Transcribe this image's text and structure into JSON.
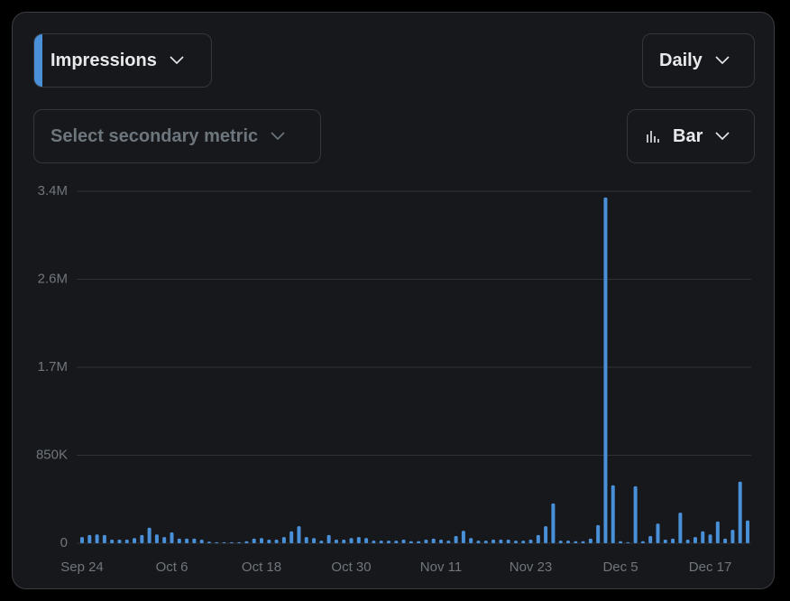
{
  "controls": {
    "primary_metric": "Impressions",
    "interval": "Daily",
    "secondary_metric": "Select secondary metric",
    "chart_style": "Bar"
  },
  "chart_data": {
    "type": "bar",
    "color": "#4a90d9",
    "grid": true,
    "categories": [
      "Sep 24",
      null,
      null,
      null,
      null,
      null,
      null,
      null,
      null,
      null,
      null,
      null,
      "Oct 6",
      null,
      null,
      null,
      null,
      null,
      null,
      null,
      null,
      null,
      null,
      null,
      "Oct 18",
      null,
      null,
      null,
      null,
      null,
      null,
      null,
      null,
      null,
      null,
      null,
      "Oct 30",
      null,
      null,
      null,
      null,
      null,
      null,
      null,
      null,
      null,
      null,
      null,
      "Nov 11",
      null,
      null,
      null,
      null,
      null,
      null,
      null,
      null,
      null,
      null,
      null,
      "Nov 23",
      null,
      null,
      null,
      null,
      null,
      null,
      null,
      null,
      null,
      null,
      null,
      "Dec 5",
      null,
      null,
      null,
      null,
      null,
      null,
      null,
      null,
      null,
      null,
      null,
      "Dec 17",
      null,
      null,
      null,
      null,
      null
    ],
    "values": [
      60000,
      80000,
      85000,
      80000,
      35000,
      35000,
      35000,
      50000,
      80000,
      150000,
      85000,
      60000,
      105000,
      45000,
      45000,
      45000,
      35000,
      15000,
      10000,
      10000,
      10000,
      10000,
      20000,
      45000,
      50000,
      35000,
      35000,
      60000,
      115000,
      165000,
      60000,
      50000,
      25000,
      80000,
      35000,
      35000,
      50000,
      60000,
      50000,
      25000,
      25000,
      25000,
      25000,
      35000,
      20000,
      20000,
      35000,
      45000,
      35000,
      25000,
      70000,
      120000,
      50000,
      25000,
      25000,
      35000,
      35000,
      35000,
      25000,
      25000,
      35000,
      80000,
      165000,
      385000,
      25000,
      25000,
      20000,
      20000,
      45000,
      175000,
      3340000,
      560000,
      20000,
      10000,
      550000,
      20000,
      70000,
      190000,
      35000,
      45000,
      295000,
      35000,
      60000,
      115000,
      85000,
      210000,
      45000,
      130000,
      595000,
      220000
    ],
    "ylim": [
      0,
      3400000
    ],
    "yticks": [
      0,
      {
        "value": 850000,
        "label": "850K"
      },
      {
        "value": 1700000,
        "label": "1.7M"
      },
      {
        "value": 2550000,
        "label": "2.6M"
      },
      {
        "value": 3400000,
        "label": "3.4M"
      }
    ]
  }
}
